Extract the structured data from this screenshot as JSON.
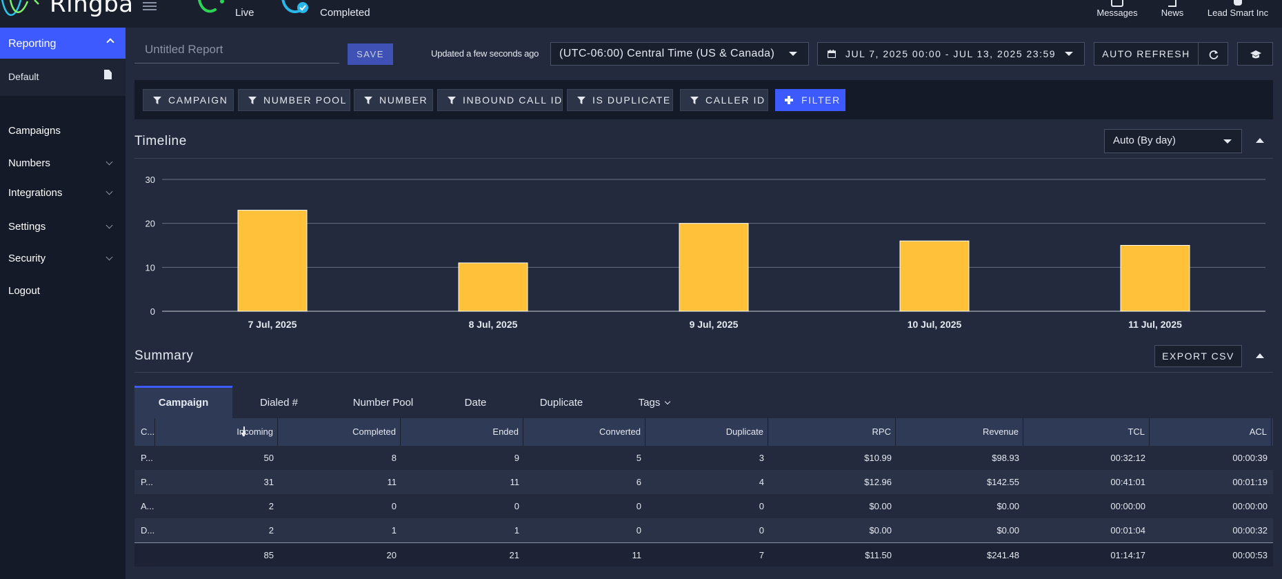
{
  "app": {
    "logo_text": "Ringba"
  },
  "topbar": {
    "live_label": "Live",
    "completed_label": "Completed",
    "messages_label": "Messages",
    "news_label": "News",
    "account_label": "Lead Smart Inc"
  },
  "sidebar": {
    "reporting": "Reporting",
    "default_report": "Default",
    "items": [
      {
        "label": "Campaigns",
        "has_chevron": false
      },
      {
        "label": "Numbers",
        "has_chevron": true
      },
      {
        "label": "Integrations",
        "has_chevron": true
      },
      {
        "label": "Settings",
        "has_chevron": true
      },
      {
        "label": "Security",
        "has_chevron": true
      },
      {
        "label": "Logout",
        "has_chevron": false
      }
    ]
  },
  "header": {
    "report_title_placeholder": "Untitled Report",
    "save_label": "SAVE",
    "updated_text": "Updated a few seconds ago",
    "timezone": "(UTC-06:00) Central Time (US & Canada)",
    "date_range": "JUL 7, 2025 00:00 - JUL 13, 2025 23:59",
    "auto_refresh_label": "AUTO REFRESH"
  },
  "filters": {
    "chips": [
      "CAMPAIGN",
      "NUMBER POOL",
      "NUMBER",
      "INBOUND CALL ID",
      "IS DUPLICATE",
      "CALLER ID"
    ],
    "add_label": "FILTER"
  },
  "timeline": {
    "title": "Timeline",
    "granularity": "Auto (By day)"
  },
  "chart_data": {
    "type": "bar",
    "categories": [
      "7 Jul, 2025",
      "8 Jul, 2025",
      "9 Jul, 2025",
      "10 Jul, 2025",
      "11 Jul, 2025"
    ],
    "values": [
      23,
      11,
      20,
      16,
      15
    ],
    "ylim": [
      0,
      30
    ],
    "yticks": [
      0,
      10,
      20,
      30
    ],
    "grid": true,
    "bar_color": "#ffc13a",
    "title": "",
    "xlabel": "",
    "ylabel": ""
  },
  "summary": {
    "title": "Summary",
    "export_label": "EXPORT CSV",
    "tabs": [
      {
        "label": "Campaign",
        "active": true
      },
      {
        "label": "Dialed #",
        "active": false
      },
      {
        "label": "Number Pool",
        "active": false
      },
      {
        "label": "Date",
        "active": false
      },
      {
        "label": "Duplicate",
        "active": false
      },
      {
        "label": "Tags",
        "active": false,
        "dropdown": true
      }
    ],
    "columns": [
      "C...",
      "Incoming",
      "Completed",
      "Ended",
      "Converted",
      "Duplicate",
      "RPC",
      "Revenue",
      "TCL",
      "ACL"
    ],
    "rows": [
      [
        "P...",
        "50",
        "8",
        "9",
        "5",
        "3",
        "$10.99",
        "$98.93",
        "00:32:12",
        "00:00:39"
      ],
      [
        "P...",
        "31",
        "11",
        "11",
        "6",
        "4",
        "$12.96",
        "$142.55",
        "00:41:01",
        "00:01:19"
      ],
      [
        "A...",
        "2",
        "0",
        "0",
        "0",
        "0",
        "$0.00",
        "$0.00",
        "00:00:00",
        "00:00:00"
      ],
      [
        "D...",
        "2",
        "1",
        "1",
        "0",
        "0",
        "$0.00",
        "$0.00",
        "00:01:04",
        "00:00:32"
      ]
    ],
    "totals": [
      "",
      "85",
      "20",
      "21",
      "11",
      "7",
      "$11.50",
      "$241.48",
      "01:14:17",
      "00:00:53"
    ]
  }
}
